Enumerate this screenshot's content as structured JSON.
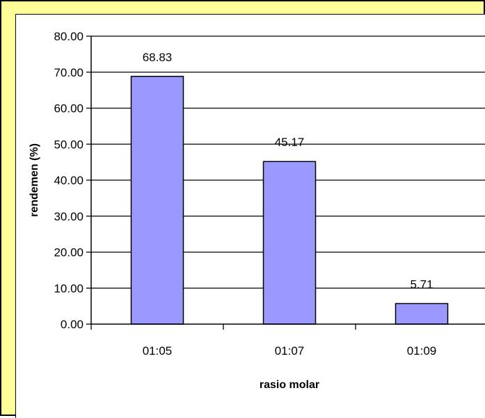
{
  "chart_data": {
    "type": "bar",
    "title": "",
    "xlabel": "rasio molar",
    "ylabel": "rendemen (%)",
    "categories": [
      "01:05",
      "01:07",
      "01:09"
    ],
    "values": [
      68.83,
      45.17,
      5.71
    ],
    "data_labels": [
      "68.83",
      "45.17",
      "5.71"
    ],
    "ylim": [
      0,
      80
    ],
    "yticks": [
      "0.00",
      "10.00",
      "20.00",
      "30.00",
      "40.00",
      "50.00",
      "60.00",
      "70.00",
      "80.00"
    ],
    "grid": true,
    "legend": "none",
    "colors": {
      "bar_fill": "#9999ff",
      "bar_stroke": "#000000",
      "frame_background": "#ffff99",
      "plot_background": "#ffffff",
      "gridline": "#000000"
    }
  }
}
